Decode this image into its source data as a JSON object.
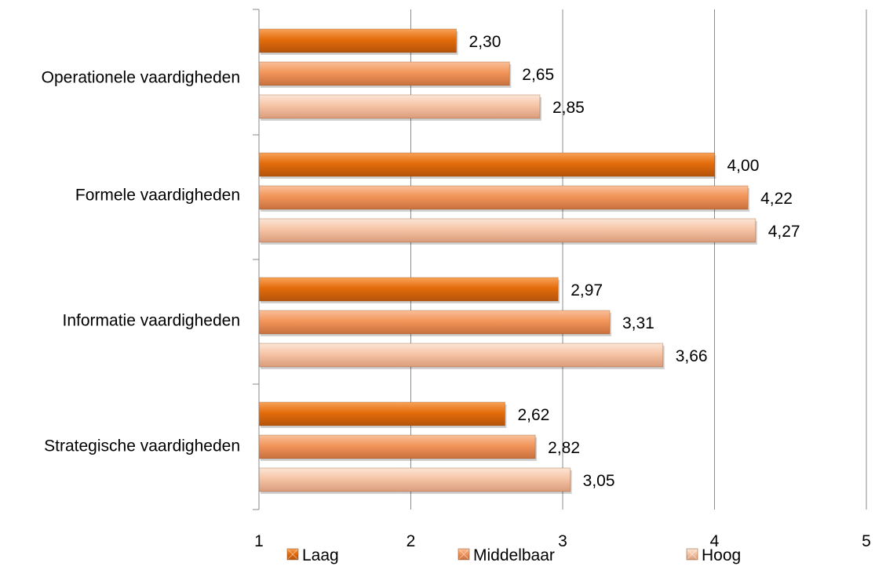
{
  "chart_data": {
    "type": "bar",
    "orientation": "horizontal",
    "categories": [
      "Operationele vaardigheden",
      "Formele vaardigheden",
      "Informatie vaardigheden",
      "Strategische vaardigheden"
    ],
    "series": [
      {
        "name": "Laag",
        "values": [
          2.3,
          4.0,
          2.97,
          2.62
        ],
        "labels": [
          "2,30",
          "4,00",
          "2,97",
          "2,62"
        ],
        "color": "#E46C0A"
      },
      {
        "name": "Middelbaar",
        "values": [
          2.65,
          4.22,
          3.31,
          2.82
        ],
        "labels": [
          "2,65",
          "4,22",
          "3,31",
          "2,82"
        ],
        "color": "#F2955A"
      },
      {
        "name": "Hoog",
        "values": [
          2.85,
          4.27,
          3.66,
          3.05
        ],
        "labels": [
          "2,85",
          "4,27",
          "3,66",
          "3,05"
        ],
        "color": "#F6C4A6"
      }
    ],
    "xlim": [
      1,
      5
    ],
    "x_ticks": [
      "1",
      "2",
      "3",
      "4",
      "5"
    ],
    "grid": true,
    "legend_position": "bottom"
  }
}
